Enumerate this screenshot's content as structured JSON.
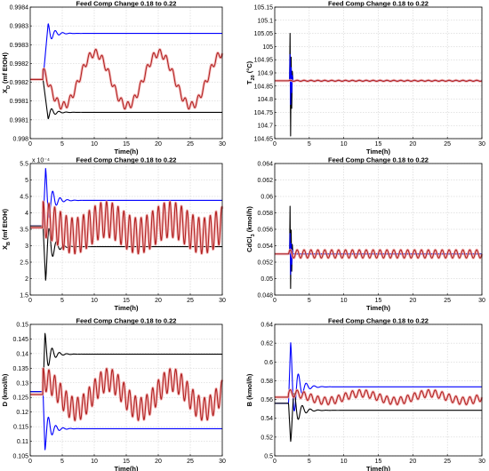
{
  "chart_data": [
    {
      "type": "line",
      "title": "Feed Comp Change 0.18 to 0.22",
      "xlabel": "Time(h)",
      "ylabel": "X_D (mf EtOH)",
      "xlim": [
        0,
        30
      ],
      "ylim": [
        0.998,
        0.9984
      ],
      "xticks": [
        "0",
        "5",
        "10",
        "15",
        "20",
        "25",
        "30"
      ],
      "yticks": [
        "0.998",
        "0.9981",
        "0.9981",
        "0.9982",
        "0.9982",
        "0.9983",
        "0.9983",
        "0.9984"
      ],
      "exponent_label": "",
      "grid": true,
      "series": [
        {
          "color": "#0000ff",
          "kind": "step",
          "values": {
            "base": 0.99818,
            "peak": 0.99835,
            "peak_t": 2.8,
            "final": 0.99832
          }
        },
        {
          "color": "#000000",
          "kind": "step",
          "values": {
            "base": 0.99818,
            "peak": 0.99806,
            "peak_t": 2.8,
            "final": 0.99808
          }
        },
        {
          "color": "#b22222",
          "kind": "oscillation",
          "values": {
            "mean": 0.99818,
            "slow_amp": 8e-05,
            "slow_period": 10,
            "fast_amp": 1.2e-05,
            "fast_period": 1.0,
            "phase": 1.5
          }
        }
      ]
    },
    {
      "type": "line",
      "title": "Feed Comp Change 0.18 to 0.22",
      "xlabel": "Time(h)",
      "ylabel": "T_20 (°C)",
      "xlim": [
        0,
        30
      ],
      "ylim": [
        104.65,
        105.15
      ],
      "xticks": [
        "0",
        "5",
        "10",
        "15",
        "20",
        "25",
        "30"
      ],
      "yticks": [
        "104.65",
        "104.7",
        "104.75",
        "104.8",
        "104.85",
        "104.9",
        "104.95",
        "105",
        "105.05",
        "105.1",
        "105.15"
      ],
      "exponent_label": "",
      "grid": true,
      "series": [
        {
          "color": "#000000",
          "kind": "spike",
          "values": {
            "base": 104.87,
            "up": 105.05,
            "down": 104.66,
            "t": 2.3
          }
        },
        {
          "color": "#0000ff",
          "kind": "spike",
          "values": {
            "base": 104.87,
            "up": 104.97,
            "down": 104.78,
            "t": 2.3
          }
        },
        {
          "color": "#b22222",
          "kind": "oscillation",
          "values": {
            "mean": 104.87,
            "slow_amp": 0.0,
            "slow_period": 10,
            "fast_amp": 0.002,
            "fast_period": 1.0,
            "phase": 0
          }
        }
      ]
    },
    {
      "type": "line",
      "title": "Feed Comp Change 0.18 to 0.22",
      "xlabel": "Time(h)",
      "ylabel": "X_B (mf EtOH)",
      "xlim": [
        0,
        30
      ],
      "ylim": [
        1.5,
        5.5
      ],
      "xticks": [
        "0",
        "5",
        "10",
        "15",
        "20",
        "25",
        "30"
      ],
      "yticks": [
        "1.5",
        "2",
        "2.5",
        "3",
        "3.5",
        "4",
        "4.5",
        "5",
        "5.5"
      ],
      "exponent_label": "x 10⁻⁴",
      "grid": true,
      "series": [
        {
          "color": "#0000ff",
          "kind": "step",
          "values": {
            "base": 3.6,
            "peak": 5.35,
            "peak_t": 2.4,
            "final": 4.38
          }
        },
        {
          "color": "#000000",
          "kind": "step",
          "values": {
            "base": 3.6,
            "peak": 1.95,
            "peak_t": 2.4,
            "final": 2.97
          }
        },
        {
          "color": "#b22222",
          "kind": "oscillation",
          "values": {
            "mean": 3.55,
            "slow_amp": 0.25,
            "slow_period": 10,
            "fast_amp": 0.55,
            "fast_period": 0.9,
            "phase": 0.4
          }
        }
      ]
    },
    {
      "type": "line",
      "title": "Feed Comp Change 0.18 to 0.22",
      "xlabel": "Time(h)",
      "ylabel": "CdCl_3 (kmol/h)",
      "xlim": [
        0,
        30
      ],
      "ylim": [
        0.048,
        0.064
      ],
      "xticks": [
        "0",
        "5",
        "10",
        "15",
        "20",
        "25",
        "30"
      ],
      "yticks": [
        "0.048",
        "0.05",
        "0.052",
        "0.054",
        "0.056",
        "0.058",
        "0.06",
        "0.062",
        "0.064"
      ],
      "exponent_label": "",
      "grid": true,
      "series": [
        {
          "color": "#000000",
          "kind": "spike",
          "values": {
            "base": 0.053,
            "up": 0.0588,
            "down": 0.0488,
            "t": 2.3
          }
        },
        {
          "color": "#0000ff",
          "kind": "spike",
          "values": {
            "base": 0.053,
            "up": 0.0555,
            "down": 0.0505,
            "t": 2.3
          }
        },
        {
          "color": "#b22222",
          "kind": "oscillation",
          "values": {
            "mean": 0.053,
            "slow_amp": 0.0,
            "slow_period": 10,
            "fast_amp": 0.0005,
            "fast_period": 1.0,
            "phase": 0
          }
        }
      ]
    },
    {
      "type": "line",
      "title": "Feed Comp Change 0.18 to 0.22",
      "xlabel": "Time(h)",
      "ylabel": "D (kmol/h)",
      "xlim": [
        0,
        30
      ],
      "ylim": [
        0.105,
        0.15
      ],
      "xticks": [
        "0",
        "5",
        "10",
        "15",
        "20",
        "25",
        "30"
      ],
      "yticks": [
        "0.105",
        "0.11",
        "0.115",
        "0.12",
        "0.125",
        "0.13",
        "0.135",
        "0.14",
        "0.145",
        "0.15"
      ],
      "exponent_label": "",
      "grid": true,
      "series": [
        {
          "color": "#000000",
          "kind": "step",
          "values": {
            "base": 0.127,
            "peak": 0.147,
            "peak_t": 2.3,
            "final": 0.1398
          }
        },
        {
          "color": "#0000ff",
          "kind": "step",
          "values": {
            "base": 0.127,
            "peak": 0.107,
            "peak_t": 2.3,
            "final": 0.1143
          }
        },
        {
          "color": "#b22222",
          "kind": "oscillation",
          "values": {
            "mean": 0.126,
            "slow_amp": 0.005,
            "slow_period": 10,
            "fast_amp": 0.004,
            "fast_period": 0.9,
            "phase": 0.2
          }
        }
      ]
    },
    {
      "type": "line",
      "title": "Feed Comp Change 0.18 to 0.22",
      "xlabel": "Time(h)",
      "ylabel": "B (kmol/h)",
      "xlim": [
        0,
        30
      ],
      "ylim": [
        0.5,
        0.64
      ],
      "xticks": [
        "0",
        "5",
        "10",
        "15",
        "20",
        "25",
        "30"
      ],
      "yticks": [
        "0.5",
        "0.52",
        "0.54",
        "0.56",
        "0.58",
        "0.6",
        "0.62",
        "0.64"
      ],
      "exponent_label": "",
      "grid": true,
      "series": [
        {
          "color": "#0000ff",
          "kind": "step",
          "values": {
            "base": 0.556,
            "peak": 0.621,
            "peak_t": 2.3,
            "final": 0.5735
          }
        },
        {
          "color": "#000000",
          "kind": "step",
          "values": {
            "base": 0.556,
            "peak": 0.515,
            "peak_t": 2.3,
            "final": 0.5485
          }
        },
        {
          "color": "#b22222",
          "kind": "oscillation",
          "values": {
            "mean": 0.5625,
            "slow_amp": 0.004,
            "slow_period": 10,
            "fast_amp": 0.004,
            "fast_period": 1.0,
            "phase": 0
          }
        }
      ]
    }
  ]
}
